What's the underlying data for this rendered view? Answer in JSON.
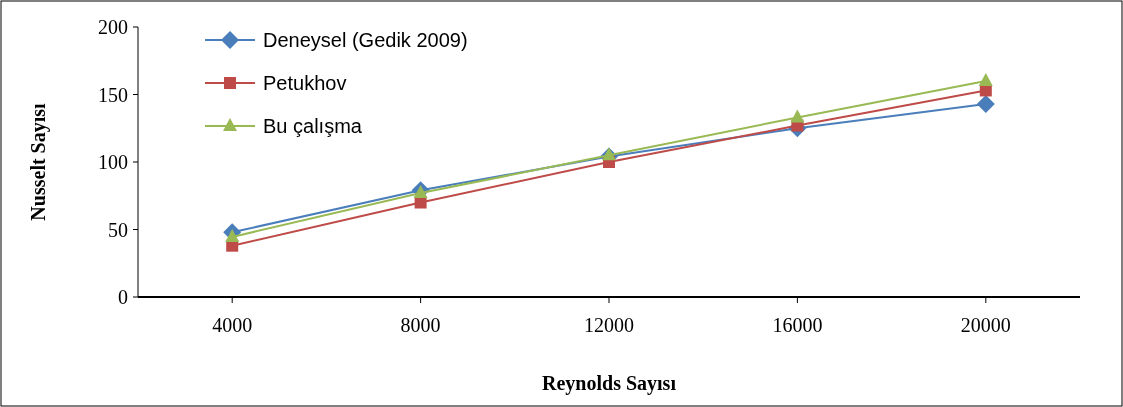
{
  "chart_data": {
    "type": "line",
    "xlabel": "Reynolds Sayısı",
    "ylabel": "Nusselt Sayısı",
    "categories": [
      "4000",
      "8000",
      "12000",
      "16000",
      "20000"
    ],
    "ylim": [
      0,
      200
    ],
    "yticks": [
      0,
      50,
      100,
      150,
      200
    ],
    "grid": false,
    "legend": "top left",
    "series": [
      {
        "name": "Deneysel (Gedik 2009)",
        "color": "#4a7ebb",
        "marker": "diamond",
        "values": [
          48,
          79,
          104,
          125,
          143
        ]
      },
      {
        "name": "Petukhov",
        "color": "#be4b48",
        "marker": "square",
        "values": [
          38,
          70,
          100,
          127,
          153
        ]
      },
      {
        "name": "Bu çalışma",
        "color": "#98b954",
        "marker": "triangle",
        "values": [
          44.5,
          77,
          105,
          133,
          160
        ]
      }
    ]
  }
}
